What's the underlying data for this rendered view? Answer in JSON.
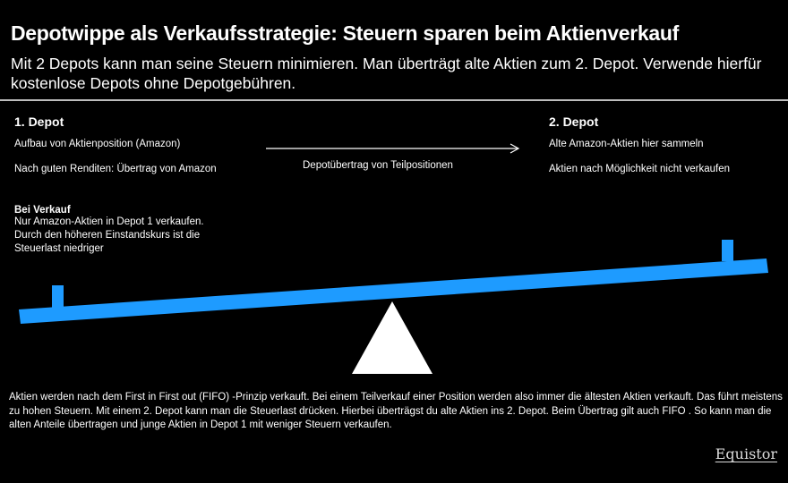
{
  "header": {
    "title": "Depotwippe als Verkaufsstrategie: Steuern sparen beim Aktienverkauf",
    "subtitle": "Mit 2 Depots kann man seine Steuern minimieren. Man überträgt alte Aktien zum 2. Depot. Verwende hierfür kostenlose Depots ohne Depotgebühren."
  },
  "depot1": {
    "heading": "1. Depot",
    "line1": "Aufbau von Aktienposition (Amazon)",
    "line2": "Nach guten Renditen: Übertrag von Amazon"
  },
  "transfer": {
    "label": "Depotübertrag von Teilpositionen"
  },
  "depot2": {
    "heading": "2. Depot",
    "line1": "Alte Amazon-Aktien hier sammeln",
    "line2": "Aktien nach Möglichkeit nicht verkaufen"
  },
  "verkauf": {
    "heading": "Bei Verkauf",
    "line1": "Nur Amazon-Aktien in Depot 1 verkaufen.",
    "line2": "Durch den höheren Einstandskurs ist die",
    "line3": "Steuerlast niedriger"
  },
  "footer": {
    "text": "Aktien werden nach dem First in First out (FIFO) -Prinzip verkauft. Bei einem Teilverkauf einer Position werden also immer die ältesten Aktien verkauft. Das führt meistens zu hohen Steuern. Mit einem 2. Depot kann man die Steuerlast drücken. Hierbei überträgst du alte Aktien ins 2. Depot. Beim Übertrag gilt auch FIFO . So kann man die alten Anteile übertragen und junge Aktien in Depot 1 mit weniger Steuern verkaufen."
  },
  "brand": {
    "logo_text": "Equistor"
  },
  "colors": {
    "background": "#000000",
    "text": "#ffffff",
    "beam": "#1e9bff",
    "fulcrum": "#ffffff"
  }
}
